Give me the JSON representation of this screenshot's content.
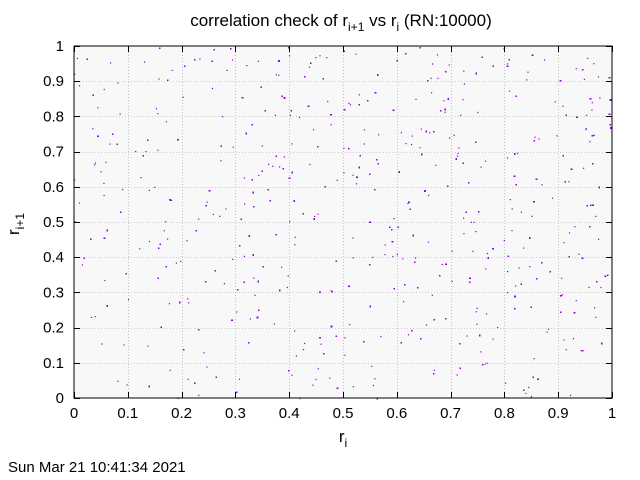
{
  "chart_data": {
    "type": "scatter",
    "title": {
      "prefix": "correlation check of r",
      "sub1": "i+1",
      "mid": " vs r",
      "sub2": "i",
      "suffix": " (RN:10000)"
    },
    "xlabel": {
      "base": "r",
      "sub": "i"
    },
    "ylabel": {
      "base": "r",
      "sub": "i+1"
    },
    "xlim": [
      0,
      1
    ],
    "ylim": [
      0,
      1
    ],
    "xticks": [
      "0",
      "0.1",
      "0.2",
      "0.3",
      "0.4",
      "0.5",
      "0.6",
      "0.7",
      "0.8",
      "0.9",
      "1"
    ],
    "yticks": [
      "0",
      "0.1",
      "0.2",
      "0.3",
      "0.4",
      "0.5",
      "0.6",
      "0.7",
      "0.8",
      "0.9",
      "1"
    ],
    "grid": true,
    "legend": "none",
    "point_count": 10000,
    "point_color": "#9400d3",
    "background_color": "#f8f8f8",
    "grid_color": "#a0a0a0"
  },
  "footer": {
    "timestamp": "Sun Mar 21 10:41:34 2021"
  }
}
